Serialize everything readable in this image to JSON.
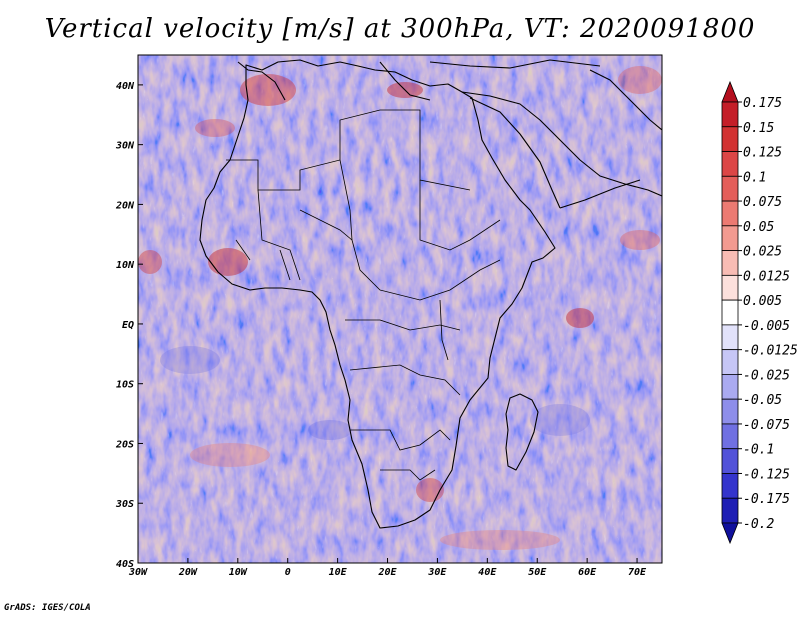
{
  "title": "Vertical velocity [m/s] at 300hPa, VT: 2020091800",
  "footer": "GrADS: IGES/COLA",
  "map": {
    "lon_range": [
      -30,
      75
    ],
    "lat_range": [
      -40,
      45
    ],
    "lon_ticks": [
      {
        "value": -30,
        "label": "30W"
      },
      {
        "value": -20,
        "label": "20W"
      },
      {
        "value": -10,
        "label": "10W"
      },
      {
        "value": 0,
        "label": "0"
      },
      {
        "value": 10,
        "label": "10E"
      },
      {
        "value": 20,
        "label": "20E"
      },
      {
        "value": 30,
        "label": "30E"
      },
      {
        "value": 40,
        "label": "40E"
      },
      {
        "value": 50,
        "label": "50E"
      },
      {
        "value": 60,
        "label": "60E"
      },
      {
        "value": 70,
        "label": "70E"
      }
    ],
    "lat_ticks": [
      {
        "value": 40,
        "label": "40N"
      },
      {
        "value": 30,
        "label": "30N"
      },
      {
        "value": 20,
        "label": "20N"
      },
      {
        "value": 10,
        "label": "10N"
      },
      {
        "value": 0,
        "label": "EQ"
      },
      {
        "value": -10,
        "label": "10S"
      },
      {
        "value": -20,
        "label": "20S"
      },
      {
        "value": -30,
        "label": "30S"
      },
      {
        "value": -40,
        "label": "40S"
      }
    ]
  },
  "colorbar": {
    "levels": [
      "0.175",
      "0.15",
      "0.125",
      "0.1",
      "0.075",
      "0.05",
      "0.025",
      "0.0125",
      "0.005",
      "-0.005",
      "-0.0125",
      "-0.025",
      "-0.05",
      "-0.075",
      "-0.1",
      "-0.125",
      "-0.175",
      "-0.2"
    ],
    "colors": [
      "#b40f1e",
      "#c41e28",
      "#d23232",
      "#dc4646",
      "#e45e5a",
      "#ec7a72",
      "#f29a90",
      "#f8bcb4",
      "#fce0dc",
      "#ffffff",
      "#e2e2fa",
      "#c6c6f6",
      "#aaaaf0",
      "#8e8eea",
      "#7070e2",
      "#5252d8",
      "#3434cc",
      "#1e1eb4",
      "#10109c"
    ]
  }
}
